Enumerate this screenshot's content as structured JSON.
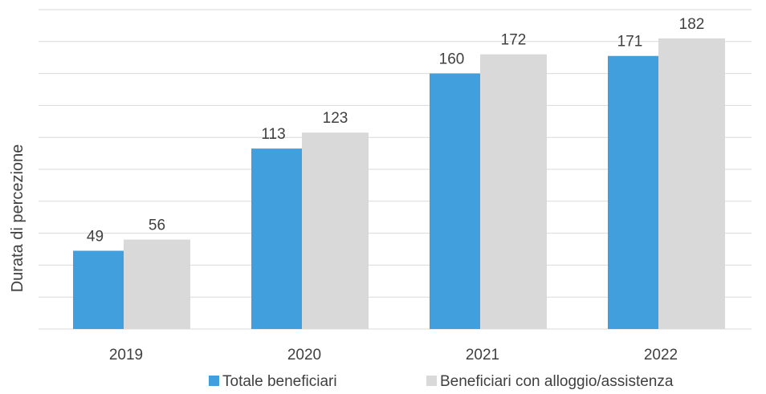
{
  "chart_data": {
    "type": "bar",
    "title": "",
    "xlabel": "",
    "ylabel": "Durata di percezione",
    "categories": [
      "2019",
      "2020",
      "2021",
      "2022"
    ],
    "series": [
      {
        "name": "Totale beneficiari",
        "values": [
          49,
          113,
          160,
          171
        ],
        "color": "#419fdd"
      },
      {
        "name": "Beneficiari con alloggio/assistenza",
        "values": [
          56,
          123,
          172,
          182
        ],
        "color": "#d9d9d9"
      }
    ],
    "ylim": [
      0,
      200
    ],
    "y_tick_step": 20,
    "y_tick_labels_visible": false,
    "grid": true,
    "legend": "bottom"
  }
}
